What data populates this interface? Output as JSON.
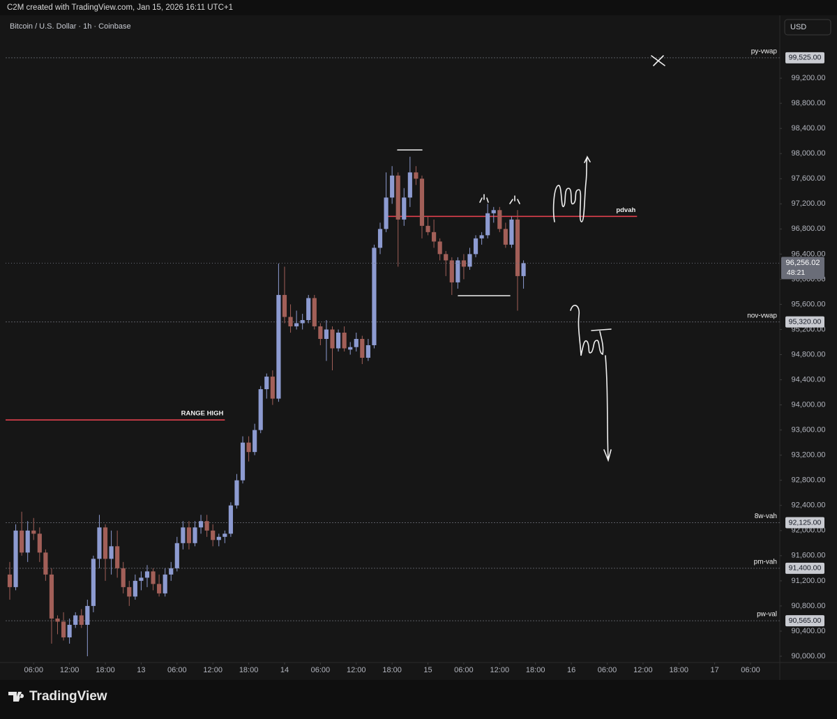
{
  "header": {
    "caption": "C2M created with TradingView.com, Jan 15, 2026 16:11 UTC+1",
    "brand": "TradingView"
  },
  "chart_data": {
    "type": "candlestick",
    "title": "Bitcoin / U.S. Dollar · 1h · Coinbase",
    "currency": "USD",
    "up_color": "#8d9bd1",
    "down_color": "#a25f58",
    "grid": false,
    "x": [
      2,
      3,
      4,
      5,
      6,
      7,
      8,
      9,
      10,
      11,
      12,
      13,
      14,
      15,
      16,
      17,
      18,
      19,
      20,
      21,
      22,
      23,
      24,
      25,
      26,
      27,
      28,
      29,
      30,
      31,
      32,
      33,
      34,
      35,
      36,
      37,
      38,
      39,
      40,
      41,
      42,
      43,
      44,
      45,
      46,
      47,
      48,
      49,
      50,
      51,
      52,
      53,
      54,
      55,
      56,
      57,
      58,
      59,
      60,
      61,
      62,
      63,
      64,
      65,
      66,
      67,
      68,
      69,
      70,
      71,
      72,
      73,
      74,
      75,
      76,
      77,
      78,
      79,
      80,
      81,
      82,
      83,
      84,
      85,
      86,
      87,
      88
    ],
    "open": [
      91300,
      91100,
      92000,
      91650,
      92000,
      91950,
      91650,
      91300,
      90600,
      90550,
      90300,
      90500,
      90650,
      90500,
      90800,
      91550,
      92050,
      91550,
      91750,
      91400,
      91100,
      90950,
      91200,
      91250,
      91350,
      91150,
      91000,
      91300,
      91400,
      91800,
      92050,
      91800,
      92050,
      92150,
      92000,
      91850,
      91900,
      91950,
      92400,
      92800,
      93400,
      93250,
      93600,
      94250,
      94450,
      94100,
      95750,
      95400,
      95250,
      95300,
      95350,
      95700,
      95250,
      95050,
      95200,
      94900,
      95150,
      94880,
      94920,
      95050,
      94750,
      94950,
      96500,
      96800,
      97300,
      97650,
      96950,
      97300,
      97700,
      97600,
      96850,
      96750,
      96600,
      96400,
      96300,
      95950,
      96300,
      96200,
      96400,
      96650,
      96700,
      97050,
      97100,
      96800,
      96550,
      96950,
      96050
    ],
    "high": [
      91500,
      92100,
      92300,
      92150,
      92200,
      92050,
      91700,
      91400,
      90650,
      90700,
      90600,
      90700,
      90750,
      90900,
      91600,
      92250,
      92100,
      92000,
      92000,
      91500,
      91200,
      91300,
      91350,
      91450,
      91400,
      91300,
      91400,
      91500,
      91900,
      92150,
      92150,
      92150,
      92250,
      92250,
      92100,
      91950,
      92000,
      92450,
      92900,
      93500,
      93500,
      93700,
      94300,
      94500,
      94550,
      96250,
      96200,
      95600,
      95500,
      95450,
      95750,
      95750,
      95300,
      95350,
      95250,
      95200,
      95250,
      95000,
      95150,
      95100,
      95050,
      96550,
      96900,
      97700,
      97800,
      97700,
      97450,
      97950,
      97800,
      97650,
      97000,
      96950,
      96650,
      96450,
      96350,
      96350,
      96400,
      96500,
      96700,
      96750,
      97200,
      97150,
      97150,
      96900,
      97000,
      97100,
      96300
    ],
    "low": [
      90900,
      91050,
      91600,
      91500,
      91850,
      91500,
      91200,
      90200,
      90350,
      90250,
      90200,
      90450,
      90450,
      90000,
      90700,
      91400,
      91200,
      91300,
      91250,
      91000,
      90800,
      90900,
      91050,
      91100,
      91050,
      90950,
      90950,
      91200,
      91350,
      91700,
      91700,
      91750,
      91950,
      91900,
      91750,
      91750,
      91800,
      91900,
      92350,
      92750,
      93100,
      93200,
      93550,
      94100,
      94000,
      94050,
      95300,
      95150,
      95200,
      95200,
      95300,
      95200,
      94950,
      94700,
      94550,
      94850,
      94850,
      94800,
      94850,
      94650,
      94700,
      94900,
      96400,
      96750,
      97200,
      96200,
      96850,
      97150,
      97500,
      96650,
      96700,
      96500,
      96300,
      96050,
      95750,
      95850,
      96000,
      96150,
      96350,
      96550,
      96650,
      96900,
      96750,
      96500,
      96500,
      95500,
      95850
    ],
    "close": [
      91100,
      92000,
      91650,
      92000,
      91950,
      91650,
      91300,
      90600,
      90550,
      90300,
      90500,
      90650,
      90500,
      90800,
      91550,
      92050,
      91550,
      91750,
      91400,
      91100,
      90950,
      91200,
      91250,
      91350,
      91150,
      91000,
      91300,
      91400,
      91800,
      92050,
      91800,
      92050,
      92150,
      92000,
      91850,
      91900,
      91950,
      92400,
      92800,
      93400,
      93250,
      93600,
      94250,
      94450,
      94100,
      95750,
      95400,
      95250,
      95300,
      95350,
      95700,
      95250,
      95050,
      95200,
      94900,
      95150,
      94900,
      94920,
      95050,
      94750,
      94950,
      96500,
      96800,
      97300,
      97650,
      96950,
      97300,
      97700,
      97600,
      96850,
      96750,
      96600,
      96400,
      96300,
      95950,
      96300,
      96200,
      96400,
      96650,
      96700,
      97050,
      97100,
      96800,
      96550,
      96950,
      96050,
      96256.02
    ],
    "xlim": [
      1.3,
      130.9
    ],
    "xticks": [
      {
        "value": 6,
        "label": "06:00"
      },
      {
        "value": 12,
        "label": "12:00"
      },
      {
        "value": 18,
        "label": "18:00"
      },
      {
        "value": 24,
        "label": "13"
      },
      {
        "value": 30,
        "label": "06:00"
      },
      {
        "value": 36,
        "label": "12:00"
      },
      {
        "value": 42,
        "label": "18:00"
      },
      {
        "value": 48,
        "label": "14"
      },
      {
        "value": 54,
        "label": "06:00"
      },
      {
        "value": 60,
        "label": "12:00"
      },
      {
        "value": 66,
        "label": "18:00"
      },
      {
        "value": 72,
        "label": "15"
      },
      {
        "value": 78,
        "label": "06:00"
      },
      {
        "value": 84,
        "label": "12:00"
      },
      {
        "value": 90,
        "label": "18:00"
      },
      {
        "value": 96,
        "label": "16"
      },
      {
        "value": 102,
        "label": "06:00"
      },
      {
        "value": 108,
        "label": "12:00"
      },
      {
        "value": 114,
        "label": "18:00"
      },
      {
        "value": 120,
        "label": "17"
      },
      {
        "value": 126,
        "label": "06:00"
      }
    ],
    "ylim": [
      89900,
      100200
    ],
    "yticks": [
      {
        "value": 90000,
        "label": "90,000.00"
      },
      {
        "value": 90400,
        "label": "90,400.00"
      },
      {
        "value": 90800,
        "label": "90,800.00"
      },
      {
        "value": 91200,
        "label": "91,200.00"
      },
      {
        "value": 91600,
        "label": "91,600.00"
      },
      {
        "value": 92000,
        "label": "92,000.00"
      },
      {
        "value": 92400,
        "label": "92,400.00"
      },
      {
        "value": 92800,
        "label": "92,800.00"
      },
      {
        "value": 93200,
        "label": "93,200.00"
      },
      {
        "value": 93600,
        "label": "93,600.00"
      },
      {
        "value": 94000,
        "label": "94,000.00"
      },
      {
        "value": 94400,
        "label": "94,400.00"
      },
      {
        "value": 94800,
        "label": "94,800.00"
      },
      {
        "value": 95200,
        "label": "95,200.00"
      },
      {
        "value": 95600,
        "label": "95,600.00"
      },
      {
        "value": 96000,
        "label": "96,000.00"
      },
      {
        "value": 96400,
        "label": "96,400.00"
      },
      {
        "value": 96800,
        "label": "96,800.00"
      },
      {
        "value": 97200,
        "label": "97,200.00"
      },
      {
        "value": 97600,
        "label": "97,600.00"
      },
      {
        "value": 98000,
        "label": "98,000.00"
      },
      {
        "value": 98400,
        "label": "98,400.00"
      },
      {
        "value": 98800,
        "label": "98,800.00"
      },
      {
        "value": 99200,
        "label": "99,200.00"
      }
    ],
    "levels": [
      {
        "label": "py-vwap",
        "value": 99525,
        "value_label": "99,525.00"
      },
      {
        "label": "nov-vwap",
        "value": 95320,
        "value_label": "95,320.00"
      },
      {
        "label": "8w-vah",
        "value": 92125,
        "value_label": "92,125.00"
      },
      {
        "label": "pm-vah",
        "value": 91400,
        "value_label": "91,400.00"
      },
      {
        "label": "pw-val",
        "value": 90565,
        "value_label": "90,565.00"
      }
    ],
    "level_color": "#5a5c63",
    "zones": [
      {
        "label": "pdvah",
        "value": 97000,
        "x": [
          65,
          107
        ]
      },
      {
        "label": "RANGE HIGH",
        "value": 93760,
        "x": [
          1.3,
          38
        ]
      }
    ],
    "zone_color": "#e0404e",
    "last_price": {
      "value": 96256.02,
      "label": "96,256.02",
      "countdown": "48:21"
    }
  }
}
